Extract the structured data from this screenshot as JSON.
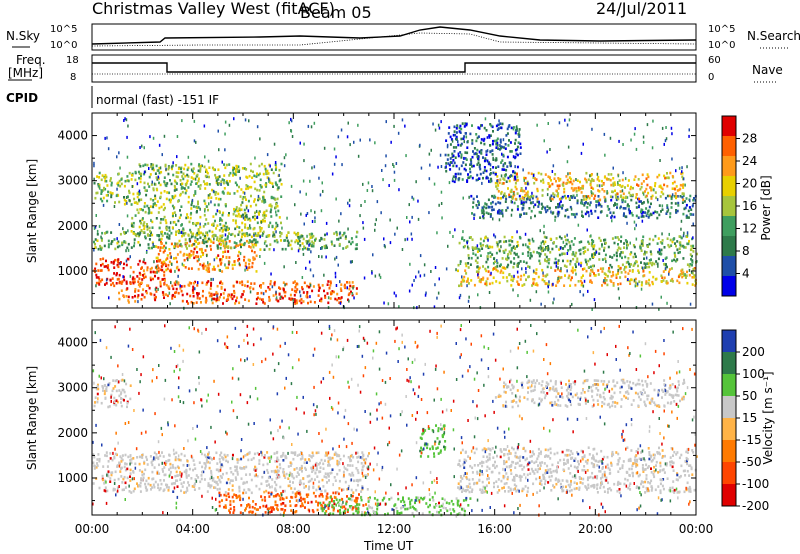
{
  "header": {
    "title": "Christmas Valley West (fitACF)",
    "beam": "Beam 05",
    "date": "24/Jul/2011"
  },
  "aux": {
    "nsky_label": "N.Sky",
    "nsky_ticks": [
      "10^5",
      "10^0"
    ],
    "nsearch_label": "N.Search",
    "freq_label_1": "Freq.",
    "freq_label_2": "[MHz]",
    "freq_ticks": [
      "18",
      "8"
    ],
    "nave_label": "Nave",
    "nave_ticks": [
      "60",
      "0"
    ],
    "cpid_label": "CPID",
    "cpid_text": "normal (fast) -151 IF"
  },
  "chart_data": [
    {
      "type": "heatmap",
      "name": "power",
      "ylabel": "Slant Range [km]",
      "colorbar_label": "Power [dB]",
      "colorbar_ticks": [
        "28",
        "24",
        "20",
        "16",
        "12",
        "8",
        "4"
      ],
      "colorbar_colors": [
        "#e00000",
        "#ff6000",
        "#ff9a1a",
        "#e8d000",
        "#a7c53c",
        "#3f9e5f",
        "#2e7a4a",
        "#1f4fa8",
        "#0000e8"
      ],
      "x_ticks": [
        "00:00",
        "04:00",
        "08:00",
        "12:00",
        "16:00",
        "20:00",
        "00:00"
      ],
      "y_ticks": [
        "4000",
        "3000",
        "2000",
        "1000"
      ],
      "xlim_hours": [
        0,
        24
      ],
      "ylim_km": [
        180,
        4500
      ],
      "echo_regions": [
        {
          "t": [
            0,
            3
          ],
          "r": [
            700,
            1300
          ],
          "level": 26
        },
        {
          "t": [
            1,
            10.5
          ],
          "r": [
            300,
            800
          ],
          "level": 24
        },
        {
          "t": [
            2.5,
            6.5
          ],
          "r": [
            1000,
            1700
          ],
          "level": 22
        },
        {
          "t": [
            0,
            10.5
          ],
          "r": [
            1500,
            1900
          ],
          "level": 12
        },
        {
          "t": [
            0,
            1.5
          ],
          "r": [
            2500,
            3200
          ],
          "level": 14
        },
        {
          "t": [
            1.5,
            7.5
          ],
          "r": [
            1800,
            3400
          ],
          "level": 14
        },
        {
          "t": [
            14.5,
            24
          ],
          "r": [
            700,
            1100
          ],
          "level": 18
        },
        {
          "t": [
            14.5,
            24
          ],
          "r": [
            1100,
            1800
          ],
          "level": 12
        },
        {
          "t": [
            15,
            24
          ],
          "r": [
            2200,
            2700
          ],
          "level": 8
        },
        {
          "t": [
            16,
            23.5
          ],
          "r": [
            2600,
            3200
          ],
          "level": 18
        },
        {
          "t": [
            14,
            17
          ],
          "r": [
            3000,
            4300
          ],
          "level": 6
        }
      ]
    },
    {
      "type": "heatmap",
      "name": "velocity",
      "ylabel": "Slant Range [km]",
      "xlabel": "Time UT",
      "colorbar_label": "Velocity [m s⁻¹]",
      "colorbar_ticks": [
        "200",
        "100",
        "50",
        "15",
        "-15",
        "-50",
        "-100",
        "-200"
      ],
      "colorbar_colors": [
        "#1f3fb0",
        "#2e7a4a",
        "#55c43a",
        "#c8c8c8",
        "#ffb347",
        "#ff7a00",
        "#ff4500",
        "#e00000"
      ],
      "x_ticks": [
        "00:00",
        "04:00",
        "08:00",
        "12:00",
        "16:00",
        "20:00",
        "00:00"
      ],
      "y_ticks": [
        "4000",
        "3000",
        "2000",
        "1000"
      ],
      "xlim_hours": [
        0,
        24
      ],
      "ylim_km": [
        180,
        4500
      ],
      "echo_regions": [
        {
          "t": [
            0,
            11
          ],
          "r": [
            700,
            1600
          ],
          "vel": 0
        },
        {
          "t": [
            5,
            11
          ],
          "r": [
            250,
            700
          ],
          "vel": -80
        },
        {
          "t": [
            9,
            15
          ],
          "r": [
            200,
            600
          ],
          "vel": 40
        },
        {
          "t": [
            14.5,
            24
          ],
          "r": [
            700,
            1700
          ],
          "vel": 0
        },
        {
          "t": [
            16,
            23.5
          ],
          "r": [
            2600,
            3200
          ],
          "vel": 0
        },
        {
          "t": [
            0,
            1.5
          ],
          "r": [
            2600,
            3200
          ],
          "vel": 0
        },
        {
          "t": [
            13,
            14
          ],
          "r": [
            1500,
            2200
          ],
          "vel": 60
        }
      ]
    }
  ]
}
